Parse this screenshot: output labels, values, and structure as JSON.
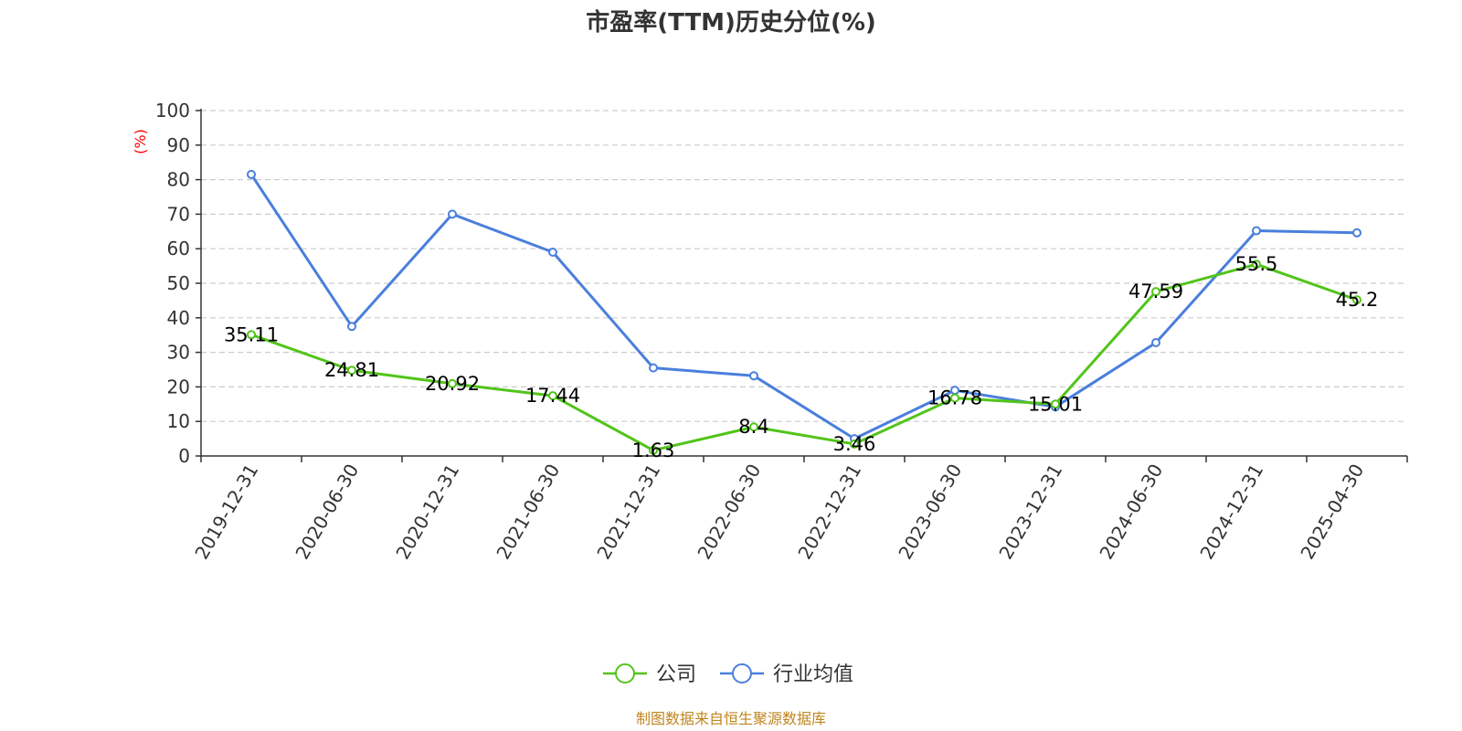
{
  "chart_data": {
    "type": "line",
    "title": "市盈率(TTM)历史分位(%)",
    "ylabel": "(%)",
    "ylim": [
      0,
      100
    ],
    "yticks": [
      0,
      10,
      20,
      30,
      40,
      50,
      60,
      70,
      80,
      90,
      100
    ],
    "grid": true,
    "legend_position": "bottom",
    "categories": [
      "2019-12-31",
      "2020-06-30",
      "2020-12-31",
      "2021-06-30",
      "2021-12-31",
      "2022-06-30",
      "2022-12-31",
      "2023-06-30",
      "2023-12-31",
      "2024-06-30",
      "2024-12-31",
      "2025-04-30"
    ],
    "series": [
      {
        "name": "公司",
        "color": "#52c41a",
        "show_labels": true,
        "values": [
          35.11,
          24.81,
          20.92,
          17.44,
          1.63,
          8.4,
          3.46,
          16.78,
          15.01,
          47.59,
          55.5,
          45.2
        ]
      },
      {
        "name": "行业均值",
        "color": "#4a7fdc",
        "show_labels": false,
        "values": [
          81.5,
          37.5,
          70,
          59,
          25.5,
          23.2,
          5.0,
          19.0,
          14.2,
          32.8,
          65.2,
          64.6
        ]
      }
    ]
  },
  "source": "制图数据来自恒生聚源数据库"
}
